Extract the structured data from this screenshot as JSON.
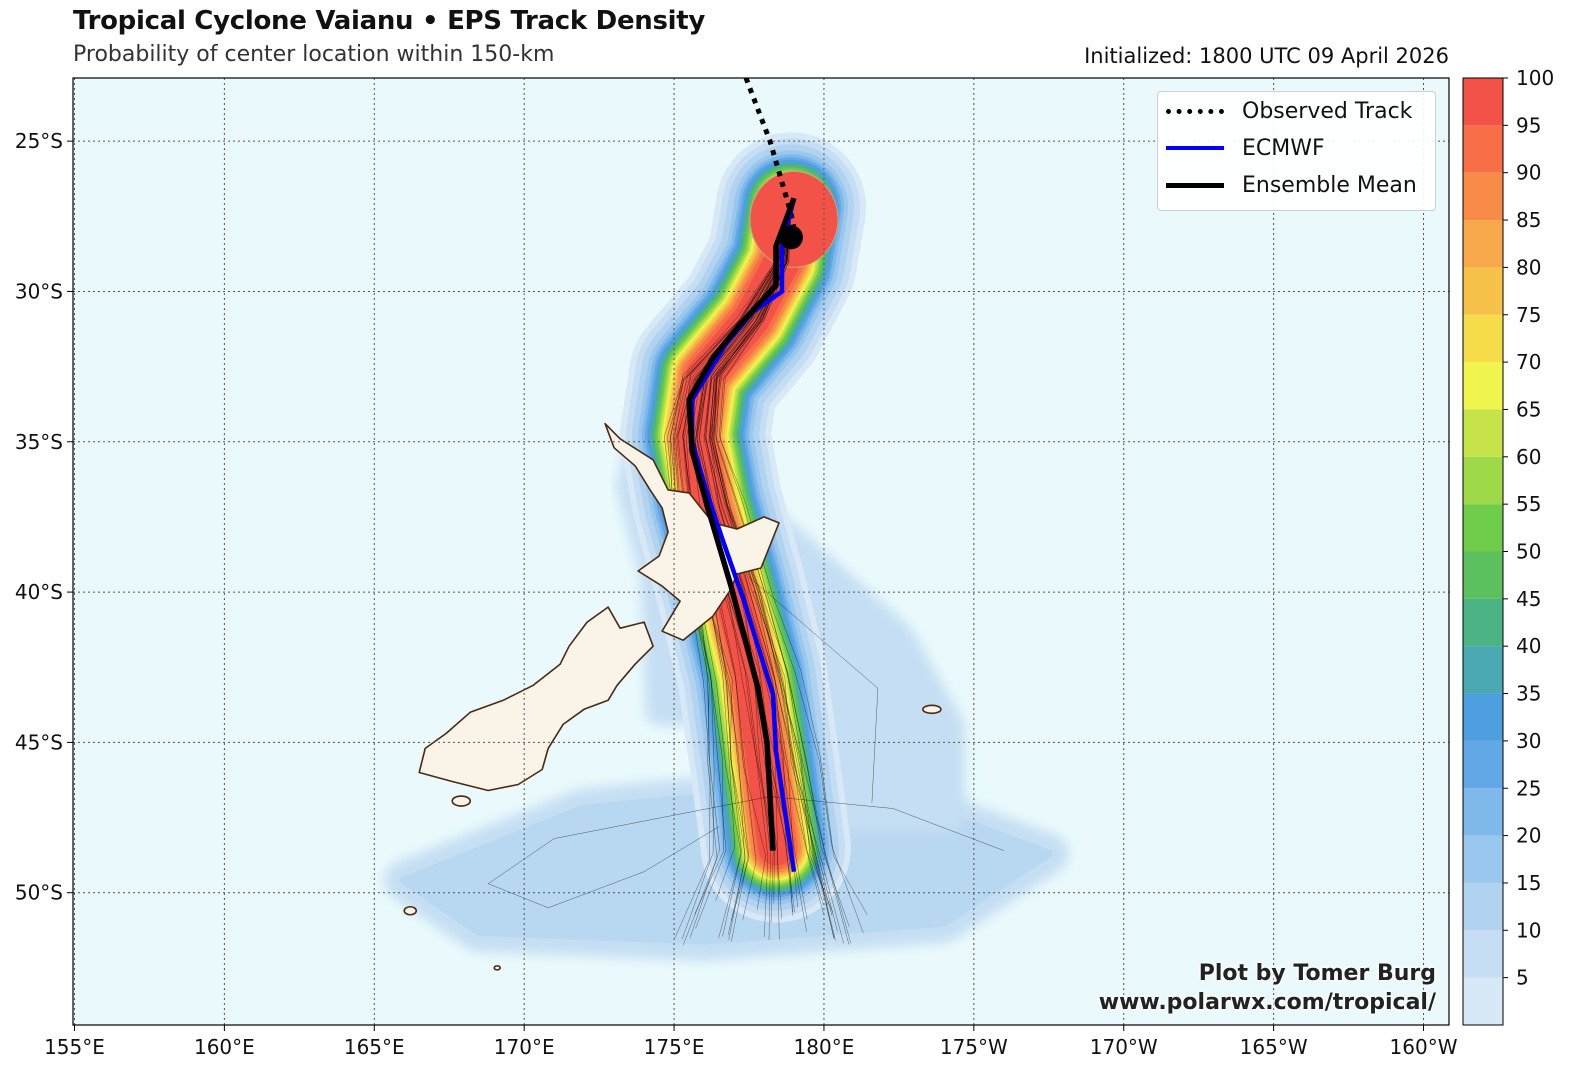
{
  "header": {
    "title": "Tropical Cyclone Vaianu • EPS Track Density",
    "subtitle": "Probability of center location within 150-km",
    "initialized": "Initialized: 1800 UTC 09 April 2026"
  },
  "legend": {
    "items": [
      {
        "label": "Observed Track",
        "style": "dotted",
        "color": "#000000"
      },
      {
        "label": "ECMWF",
        "style": "solid",
        "color": "#0000ff"
      },
      {
        "label": "Ensemble Mean",
        "style": "solid",
        "color": "#000000"
      }
    ]
  },
  "credit": {
    "line1": "Plot by Tomer Burg",
    "line2": "www.polarwx.com/tropical/"
  },
  "axes": {
    "lon_ticks": [
      "155°E",
      "160°E",
      "165°E",
      "170°E",
      "175°E",
      "180°E",
      "175°W",
      "170°W",
      "165°W",
      "160°W"
    ],
    "lat_ticks": [
      "25°S",
      "30°S",
      "35°S",
      "40°S",
      "45°S",
      "50°S"
    ],
    "lon_values": [
      155,
      160,
      165,
      170,
      175,
      180,
      185,
      190,
      195,
      200
    ],
    "lat_values": [
      -25,
      -30,
      -35,
      -40,
      -45,
      -50
    ],
    "lon_range": [
      154.95,
      200.85
    ],
    "lat_range": [
      -54.4,
      -22.9
    ]
  },
  "colorbar": {
    "ticks": [
      "5",
      "10",
      "15",
      "20",
      "25",
      "30",
      "35",
      "40",
      "45",
      "50",
      "55",
      "60",
      "65",
      "70",
      "75",
      "80",
      "85",
      "90",
      "95",
      "100"
    ],
    "levels": [
      0,
      5,
      10,
      15,
      20,
      25,
      30,
      35,
      40,
      45,
      50,
      55,
      60,
      65,
      70,
      75,
      80,
      85,
      90,
      95,
      100
    ],
    "colors": [
      "#d7e8f7",
      "#c5def3",
      "#b1d3f0",
      "#99c7ee",
      "#7fb8ea",
      "#63a8e6",
      "#4d9fe0",
      "#4aa9b2",
      "#4cb385",
      "#5cc05f",
      "#6fcd4a",
      "#9ed94a",
      "#c6e44a",
      "#eff54c",
      "#f5dc48",
      "#f6c24a",
      "#f7a84a",
      "#f78b47",
      "#f76e47",
      "#f25247"
    ]
  },
  "map": {
    "ocean_color": "#eafafc",
    "land_color": "#faf3e8",
    "coast_color": "#4a2a12"
  },
  "tracks": {
    "observed": [
      [
        177.4,
        -22.9
      ],
      [
        178.2,
        -25.0
      ],
      [
        178.9,
        -27.4
      ],
      [
        179.0,
        -27.9
      ]
    ],
    "current_position": [
      178.9,
      -28.2
    ],
    "ecmwf": [
      [
        179.0,
        -26.9
      ],
      [
        178.6,
        -28.5
      ],
      [
        178.6,
        -30.0
      ],
      [
        177.6,
        -30.7
      ],
      [
        176.7,
        -31.8
      ],
      [
        175.6,
        -33.6
      ],
      [
        175.6,
        -35.0
      ],
      [
        176.1,
        -36.7
      ],
      [
        176.6,
        -38.2
      ],
      [
        177.3,
        -40.2
      ],
      [
        178.3,
        -43.4
      ],
      [
        178.4,
        -45.3
      ],
      [
        179.0,
        -49.3
      ]
    ],
    "ensemble_mean": [
      [
        179.0,
        -26.9
      ],
      [
        178.4,
        -28.5
      ],
      [
        178.4,
        -29.8
      ],
      [
        177.2,
        -31.1
      ],
      [
        176.3,
        -32.2
      ],
      [
        175.5,
        -33.6
      ],
      [
        175.6,
        -35.3
      ],
      [
        176.1,
        -37.1
      ],
      [
        176.9,
        -39.8
      ],
      [
        177.8,
        -43.2
      ],
      [
        178.1,
        -45.0
      ],
      [
        178.3,
        -48.6
      ]
    ]
  },
  "density_field": {
    "note_units": "percent probability",
    "track_center": [
      [
        178.9,
        -27.2
      ],
      [
        178.6,
        -29.0
      ],
      [
        177.6,
        -30.9
      ],
      [
        176.0,
        -32.8
      ],
      [
        175.7,
        -34.8
      ],
      [
        176.1,
        -37.0
      ],
      [
        176.9,
        -39.9
      ],
      [
        177.6,
        -42.7
      ],
      [
        178.0,
        -45.5
      ],
      [
        178.4,
        -48.5
      ]
    ],
    "tail_extent": [
      [
        166.0,
        -49.6
      ],
      [
        172.0,
        -47.2
      ],
      [
        178.2,
        -46.6
      ],
      [
        184.0,
        -47.4
      ],
      [
        187.5,
        -48.7
      ],
      [
        184.0,
        -51.0
      ],
      [
        176.0,
        -51.6
      ],
      [
        168.5,
        -51.3
      ]
    ]
  }
}
